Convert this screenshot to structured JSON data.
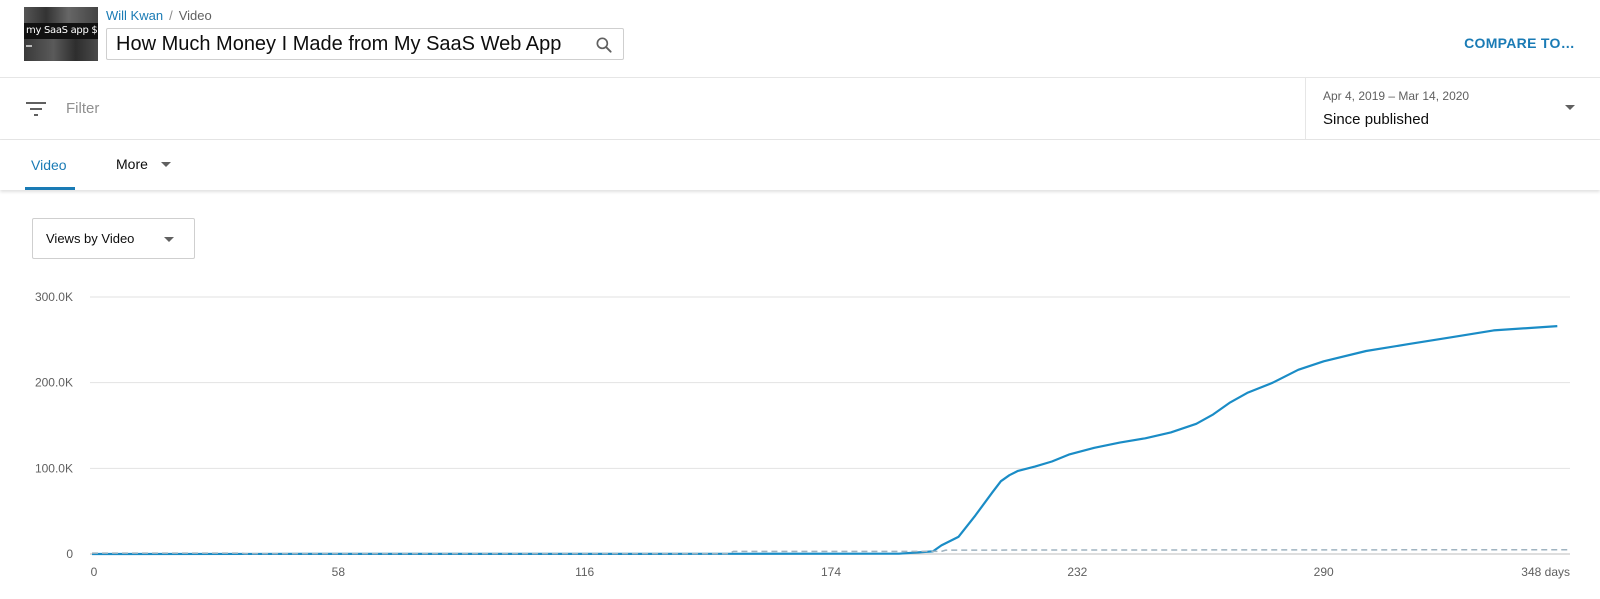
{
  "header": {
    "thumbnail_text": "my SaaS app $$$",
    "breadcrumb": {
      "channel": "Will Kwan",
      "separator": "/",
      "section": "Video"
    },
    "video_title": "How Much Money I Made from My SaaS Web App",
    "compare_label": "COMPARE TO…"
  },
  "filterbar": {
    "filter_placeholder": "Filter",
    "date_range": "Apr 4, 2019 – Mar 14, 2020",
    "date_preset": "Since published"
  },
  "tabs": {
    "video": "Video",
    "more": "More"
  },
  "metric_select": {
    "label": "Views by Video"
  },
  "icons": {
    "search": "search-icon",
    "filter": "filter-icon",
    "dropdown": "caret-down-icon"
  },
  "colors": {
    "accent": "#1a7bb5",
    "series": "#1a8cc6",
    "baseline": "#9fb3c0",
    "grid": "#e2e2e2"
  },
  "chart_data": {
    "type": "line",
    "xlabel": "",
    "ylabel": "",
    "x_unit": "days",
    "xlim": [
      0,
      348
    ],
    "ylim": [
      0,
      300000
    ],
    "x_ticks": [
      {
        "value": 0,
        "label": "0"
      },
      {
        "value": 58,
        "label": "58"
      },
      {
        "value": 116,
        "label": "116"
      },
      {
        "value": 174,
        "label": "174"
      },
      {
        "value": 232,
        "label": "232"
      },
      {
        "value": 290,
        "label": "290"
      },
      {
        "value": 348,
        "label": "348 days"
      }
    ],
    "y_ticks": [
      {
        "value": 0,
        "label": "0"
      },
      {
        "value": 100000,
        "label": "100.0K"
      },
      {
        "value": 200000,
        "label": "200.0K"
      },
      {
        "value": 300000,
        "label": "300.0K"
      }
    ],
    "grid": true,
    "series": [
      {
        "style": "solid",
        "color": "#1a8cc6",
        "x": [
          0,
          50,
          100,
          150,
          190,
          198,
          200,
          204,
          208,
          212,
          214,
          216,
          218,
          222,
          226,
          230,
          236,
          242,
          248,
          254,
          260,
          264,
          268,
          272,
          278,
          284,
          290,
          300,
          310,
          320,
          330,
          345
        ],
        "y": [
          0,
          100,
          150,
          200,
          400,
          3000,
          10000,
          20000,
          45000,
          72000,
          85000,
          92000,
          97000,
          102000,
          108000,
          116000,
          124000,
          130000,
          135000,
          142000,
          152000,
          163000,
          177000,
          188000,
          200000,
          215000,
          225000,
          237000,
          245000,
          253000,
          261000,
          266000
        ]
      },
      {
        "style": "dashed",
        "color": "#9fb3c0",
        "x": [
          0,
          35,
          36,
          150,
          151,
          200,
          201,
          348
        ],
        "y": [
          1000,
          1000,
          500,
          500,
          3000,
          3000,
          4500,
          5000
        ]
      }
    ]
  }
}
